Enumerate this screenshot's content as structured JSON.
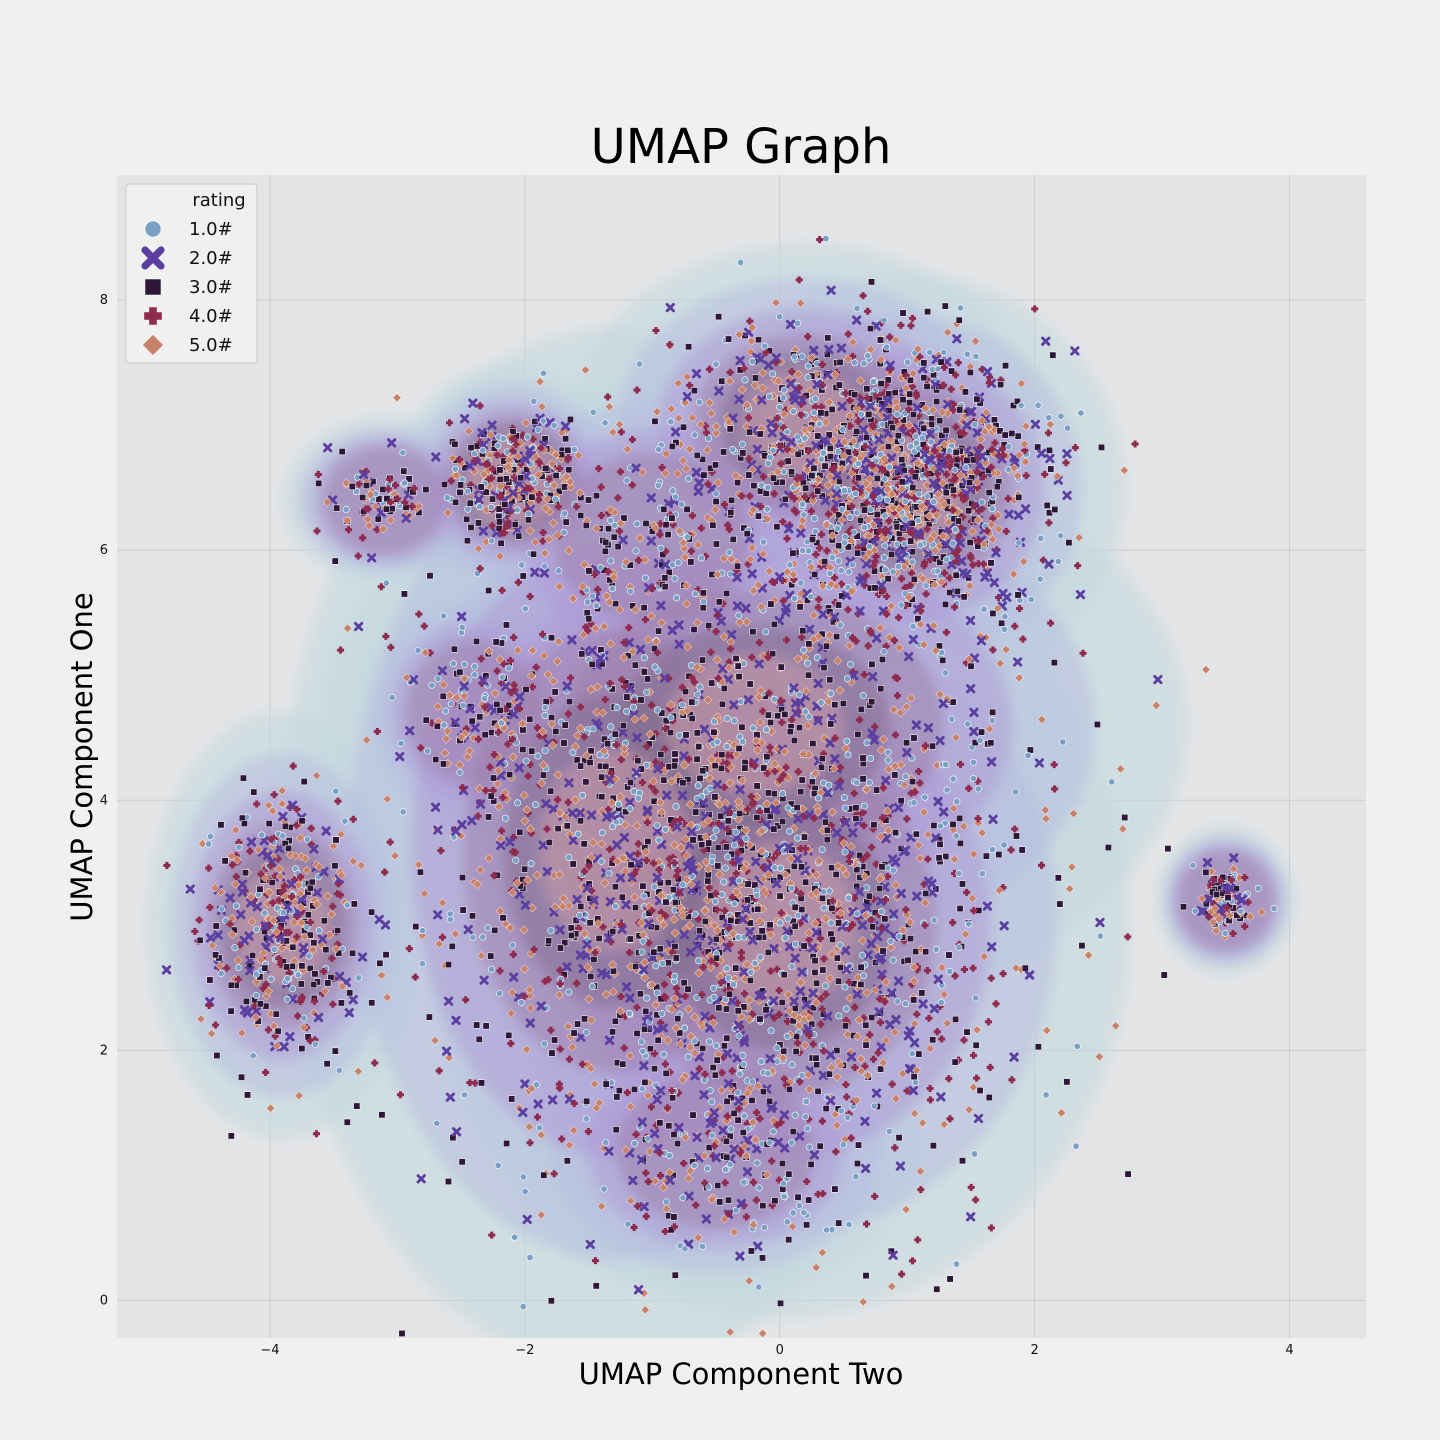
{
  "chart_data": {
    "type": "scatter",
    "title": "UMAP Graph",
    "xlabel": "UMAP Component Two",
    "ylabel": "UMAP Component One",
    "xlim": [
      -5.2,
      4.6
    ],
    "ylim": [
      -0.3,
      9.0
    ],
    "xticks": [
      -4,
      -2,
      0,
      2,
      4
    ],
    "xtick_labels": [
      "−4",
      "−2",
      "0",
      "2",
      "4"
    ],
    "yticks": [
      0,
      2,
      4,
      6,
      8
    ],
    "ytick_labels": [
      "0",
      "2",
      "4",
      "6",
      "8"
    ],
    "grid": true,
    "background": "#e3e4e6",
    "legend": {
      "title": "rating",
      "placement": "top-left",
      "entries": [
        {
          "label": "1.0#",
          "marker": "circle",
          "color": "#7ba0c6"
        },
        {
          "label": "2.0#",
          "marker": "x",
          "color": "#5b3fa0"
        },
        {
          "label": "3.0#",
          "marker": "square",
          "color": "#2e1838"
        },
        {
          "label": "4.0#",
          "marker": "plus",
          "color": "#8e2a4e"
        },
        {
          "label": "5.0#",
          "marker": "diamond",
          "color": "#c8826a"
        }
      ]
    },
    "density_overlay": {
      "type": "kde",
      "levels": [
        "#c2d8df",
        "#b6bde0",
        "#ad9ad6",
        "#9e7ea8",
        "#7d6686",
        "#d8a2a8"
      ]
    },
    "clusters": [
      {
        "cx": 0.0,
        "cy": 3.0,
        "sx": 0.95,
        "sy": 1.1,
        "n": 1500
      },
      {
        "cx": 1.0,
        "cy": 6.5,
        "sx": 0.55,
        "sy": 0.55,
        "n": 1250
      },
      {
        "cx": -0.2,
        "cy": 4.6,
        "sx": 1.2,
        "sy": 0.8,
        "n": 500
      },
      {
        "cx": -1.3,
        "cy": 3.6,
        "sx": 0.9,
        "sy": 1.5,
        "n": 700
      },
      {
        "cx": -3.9,
        "cy": 3.0,
        "sx": 0.3,
        "sy": 0.55,
        "n": 420
      },
      {
        "cx": -2.1,
        "cy": 6.55,
        "sx": 0.25,
        "sy": 0.25,
        "n": 320
      },
      {
        "cx": 3.5,
        "cy": 3.2,
        "sx": 0.1,
        "sy": 0.12,
        "n": 130
      },
      {
        "cx": -3.1,
        "cy": 6.4,
        "sx": 0.2,
        "sy": 0.15,
        "n": 90
      },
      {
        "cx": 0.2,
        "cy": 7.0,
        "sx": 0.6,
        "sy": 0.45,
        "n": 350
      },
      {
        "cx": -2.4,
        "cy": 4.7,
        "sx": 0.25,
        "sy": 0.3,
        "n": 110
      },
      {
        "cx": -0.5,
        "cy": 1.2,
        "sx": 0.5,
        "sy": 0.35,
        "n": 160
      },
      {
        "cx": -1.0,
        "cy": 6.1,
        "sx": 0.5,
        "sy": 0.4,
        "n": 140
      }
    ]
  }
}
